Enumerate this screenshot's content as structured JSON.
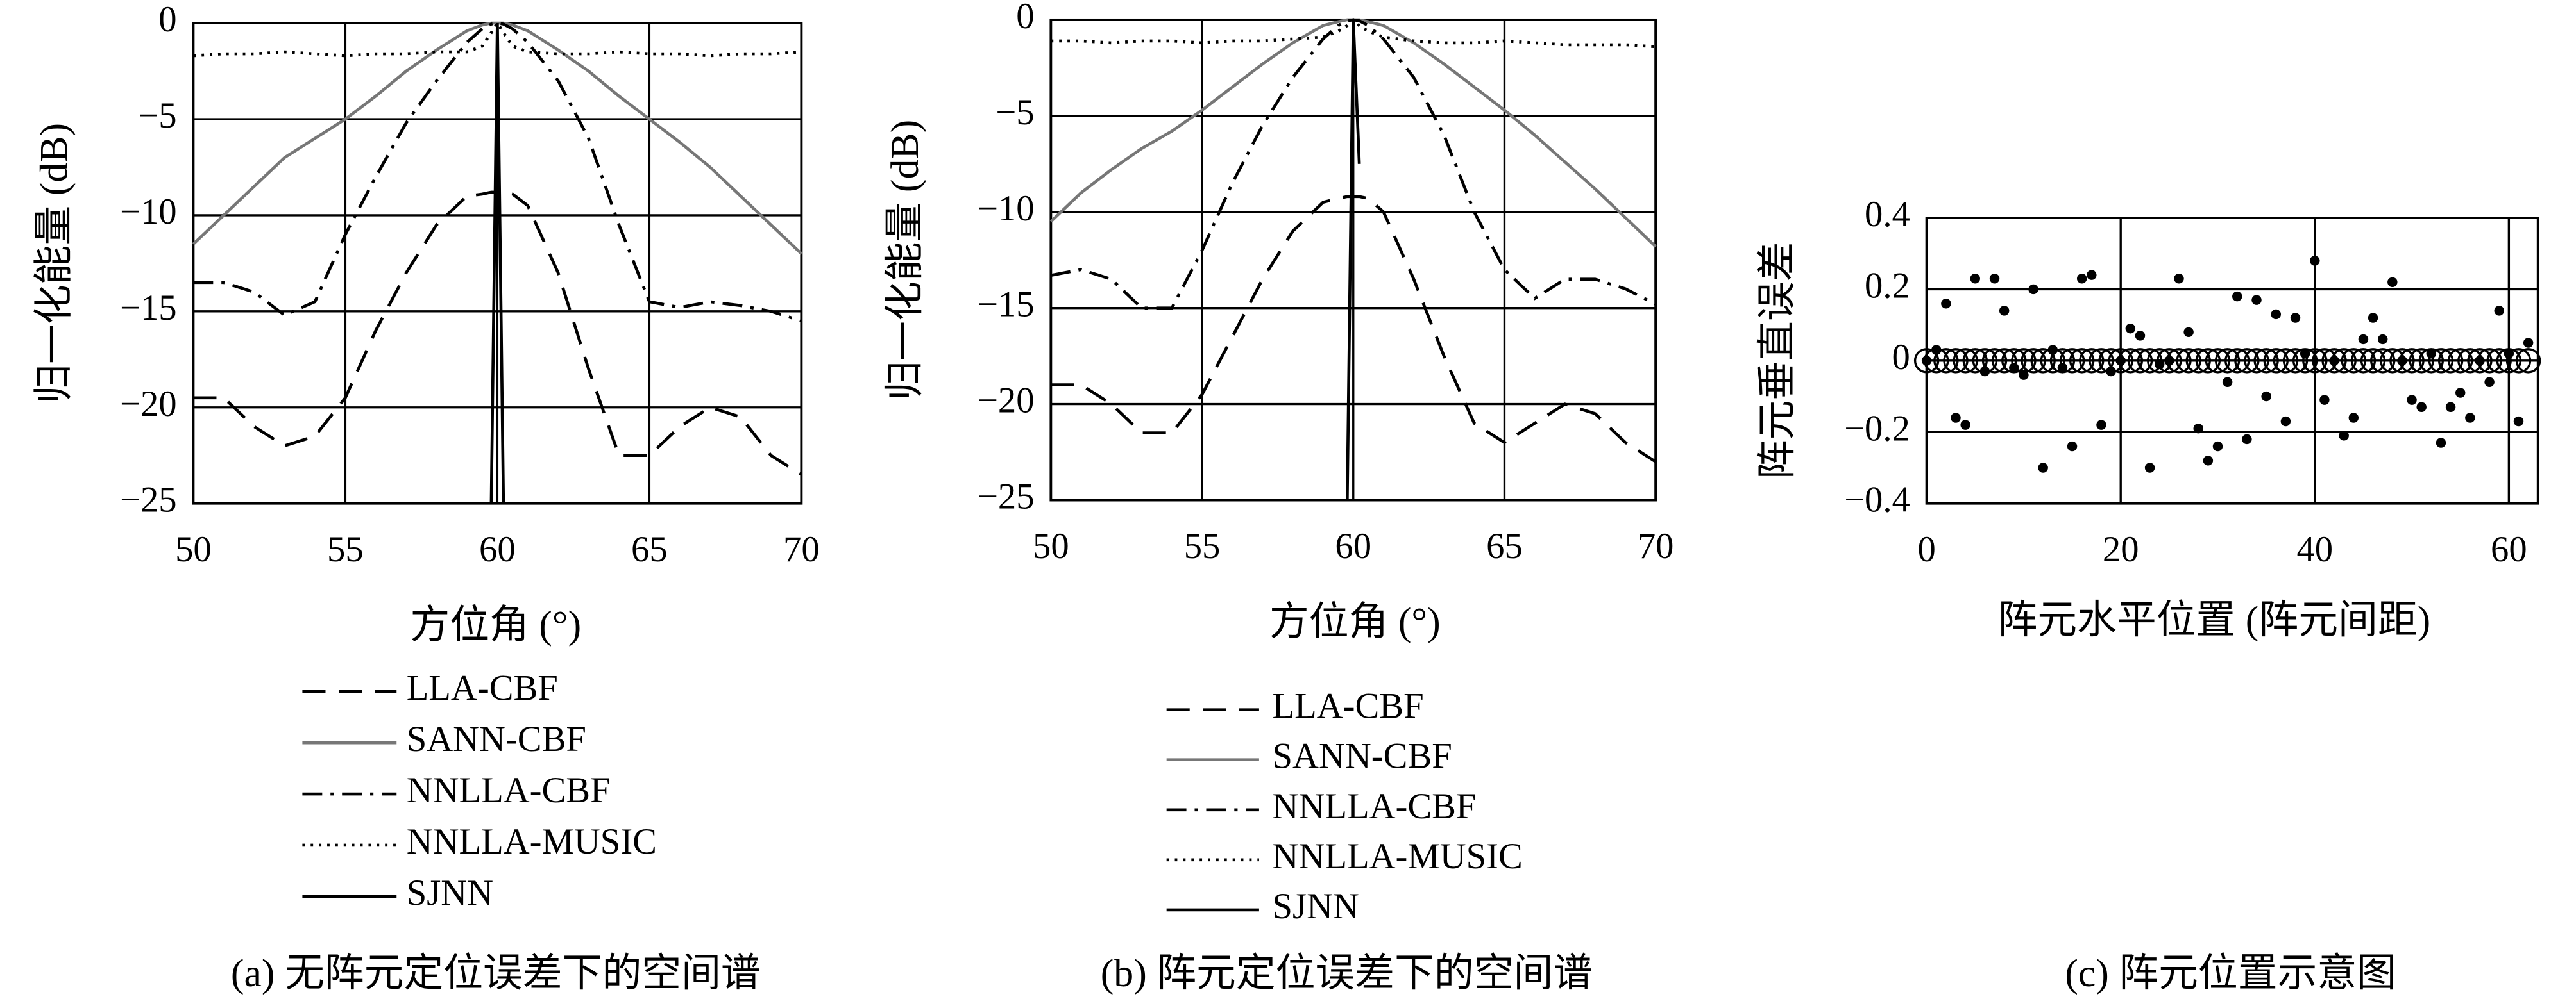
{
  "chart_data": [
    {
      "type": "line",
      "ylabel": "归一化能量 (dB)",
      "xlabel": "方位角 (°)",
      "caption": "(a) 无阵元定位误差下的空间谱",
      "x": [
        50,
        51,
        52,
        53,
        54,
        55,
        56,
        57,
        58,
        59,
        59.5,
        59.8,
        60,
        60.2,
        60.5,
        61,
        62,
        63,
        64,
        65,
        66,
        67,
        68,
        69,
        70
      ],
      "xlim": [
        50,
        70
      ],
      "xticks": [
        50,
        55,
        60,
        65,
        70
      ],
      "ylim": [
        -25,
        0
      ],
      "yticks": [
        {
          "value": -25,
          "label": "−25"
        },
        {
          "value": -20,
          "label": "−20"
        },
        {
          "value": -15,
          "label": "−15"
        },
        {
          "value": -10,
          "label": "−10"
        },
        {
          "value": -5,
          "label": "−5"
        },
        0
      ],
      "grid": true,
      "series": [
        {
          "name": "LLA-CBF",
          "color": "#000000",
          "dash": "dashed",
          "values": [
            -19.5,
            -19.5,
            -21,
            -22,
            -21.5,
            -19.5,
            -16,
            -13,
            -10.5,
            -9,
            -8.9,
            -8.8,
            -8.8,
            -8.8,
            -8.9,
            -9.5,
            -13,
            -18,
            -22.5,
            -22.5,
            -21,
            -20,
            -20.5,
            -22.5,
            -23.5
          ]
        },
        {
          "name": "SANN-CBF",
          "color": "#777777",
          "dash": "solid",
          "values": [
            -11.5,
            -10,
            -8.5,
            -7,
            -6,
            -5,
            -3.8,
            -2.5,
            -1.4,
            -0.4,
            -0.1,
            0,
            0,
            0,
            -0.1,
            -0.4,
            -1.4,
            -2.5,
            -3.8,
            -5,
            -6.2,
            -7.5,
            -9,
            -10.5,
            -12
          ]
        },
        {
          "name": "NNLLA-CBF",
          "color": "#000000",
          "dash": "dashdot",
          "values": [
            -13.5,
            -13.5,
            -14,
            -15.2,
            -14.5,
            -11,
            -8,
            -5.2,
            -3,
            -1,
            -0.3,
            -0.05,
            0,
            -0.05,
            -0.3,
            -1,
            -3,
            -6,
            -10.5,
            -14.5,
            -14.8,
            -14.5,
            -14.7,
            -15,
            -15.5
          ]
        },
        {
          "name": "NNLLA-MUSIC",
          "color": "#000000",
          "dash": "dotted",
          "values": [
            -1.7,
            -1.6,
            -1.6,
            -1.5,
            -1.6,
            -1.7,
            -1.6,
            -1.6,
            -1.5,
            -1.5,
            -1.2,
            -0.5,
            0,
            -0.5,
            -1.2,
            -1.5,
            -1.6,
            -1.6,
            -1.5,
            -1.6,
            -1.6,
            -1.7,
            -1.6,
            -1.6,
            -1.5
          ]
        },
        {
          "name": "SJNN",
          "color": "#000000",
          "dash": "solid",
          "values": [
            null,
            null,
            null,
            null,
            null,
            null,
            null,
            null,
            null,
            null,
            null,
            -25,
            0,
            -25,
            null,
            null,
            null,
            null,
            null,
            null,
            null,
            null,
            null,
            null,
            null
          ]
        }
      ]
    },
    {
      "type": "line",
      "ylabel": "归一化能量 (dB)",
      "xlabel": "方位角 (°)",
      "caption": "(b) 阵元定位误差下的空间谱",
      "x": [
        50,
        51,
        52,
        53,
        54,
        55,
        56,
        57,
        58,
        59,
        59.5,
        59.8,
        60,
        60.2,
        60.5,
        61,
        62,
        63,
        64,
        65,
        66,
        67,
        68,
        69,
        70
      ],
      "xlim": [
        50,
        70
      ],
      "xticks": [
        50,
        55,
        60,
        65,
        70
      ],
      "ylim": [
        -25,
        0
      ],
      "yticks": [
        {
          "value": -25,
          "label": "−25"
        },
        {
          "value": -20,
          "label": "−20"
        },
        {
          "value": -15,
          "label": "−15"
        },
        {
          "value": -10,
          "label": "−10"
        },
        {
          "value": -5,
          "label": "−5"
        },
        0
      ],
      "grid": true,
      "series": [
        {
          "name": "LLA-CBF",
          "color": "#000000",
          "dash": "dashed",
          "values": [
            -19,
            -19,
            -20,
            -21.5,
            -21.5,
            -19.5,
            -16.5,
            -13.5,
            -11,
            -9.5,
            -9.3,
            -9.2,
            -9.2,
            -9.2,
            -9.3,
            -10,
            -13.5,
            -17.5,
            -21,
            -22,
            -21,
            -20,
            -20.5,
            -22,
            -23
          ]
        },
        {
          "name": "SANN-CBF",
          "color": "#777777",
          "dash": "solid",
          "values": [
            -10.5,
            -9,
            -7.8,
            -6.7,
            -5.8,
            -4.7,
            -3.5,
            -2.3,
            -1.2,
            -0.3,
            -0.1,
            0,
            0,
            0,
            -0.1,
            -0.3,
            -1.2,
            -2.3,
            -3.5,
            -4.7,
            -6,
            -7.4,
            -8.8,
            -10.3,
            -11.8
          ]
        },
        {
          "name": "NNLLA-CBF",
          "color": "#000000",
          "dash": "dashdot",
          "values": [
            -13.3,
            -13,
            -13.5,
            -15,
            -15,
            -12,
            -8.5,
            -5.5,
            -3,
            -1,
            -0.3,
            -0.05,
            0,
            -0.05,
            -0.3,
            -1,
            -3,
            -6,
            -10,
            -13,
            -14.5,
            -13.5,
            -13.5,
            -14,
            -14.8
          ]
        },
        {
          "name": "NNLLA-MUSIC",
          "color": "#000000",
          "dash": "dotted",
          "values": [
            -1.1,
            -1.1,
            -1.2,
            -1.1,
            -1.1,
            -1.2,
            -1.1,
            -1.1,
            -1.0,
            -0.9,
            -0.6,
            -0.3,
            0,
            -0.3,
            -0.6,
            -0.9,
            -1.1,
            -1.2,
            -1.2,
            -1.1,
            -1.2,
            -1.3,
            -1.3,
            -1.3,
            -1.4
          ]
        },
        {
          "name": "SJNN",
          "color": "#000000",
          "dash": "solid",
          "values": [
            null,
            null,
            null,
            null,
            null,
            null,
            null,
            null,
            null,
            null,
            null,
            -25,
            0,
            -7.5,
            null,
            null,
            null,
            null,
            null,
            null,
            null,
            null,
            null,
            null,
            null
          ]
        }
      ]
    },
    {
      "type": "scatter",
      "ylabel": "阵元垂直误差",
      "xlabel": "阵元水平位置 (阵元间距)",
      "caption": "(c) 阵元位置示意图",
      "x": [
        0,
        1,
        2,
        3,
        4,
        5,
        6,
        7,
        8,
        9,
        10,
        11,
        12,
        13,
        14,
        15,
        16,
        17,
        18,
        19,
        20,
        21,
        22,
        23,
        24,
        25,
        26,
        27,
        28,
        29,
        30,
        31,
        32,
        33,
        34,
        35,
        36,
        37,
        38,
        39,
        40,
        41,
        42,
        43,
        44,
        45,
        46,
        47,
        48,
        49,
        50,
        51,
        52,
        53,
        54,
        55,
        56,
        57,
        58,
        59,
        60,
        61,
        62
      ],
      "xlim": [
        0,
        63
      ],
      "xticks": [
        0,
        20,
        40,
        60
      ],
      "ylim": [
        -0.4,
        0.4
      ],
      "yticks": [
        {
          "value": -0.4,
          "label": "−0.4"
        },
        {
          "value": -0.2,
          "label": "−0.2"
        },
        0,
        0.2,
        0.4
      ],
      "grid": true,
      "series": [
        {
          "color": "#000000",
          "marker": "circle",
          "values": [
            0,
            0,
            0,
            0,
            0,
            0,
            0,
            0,
            0,
            0,
            0,
            0,
            0,
            0,
            0,
            0,
            0,
            0,
            0,
            0,
            0,
            0,
            0,
            0,
            0,
            0,
            0,
            0,
            0,
            0,
            0,
            0,
            0,
            0,
            0,
            0,
            0,
            0,
            0,
            0,
            0,
            0,
            0,
            0,
            0,
            0,
            0,
            0,
            0,
            0,
            0,
            0,
            0,
            0,
            0,
            0,
            0,
            0,
            0,
            0,
            0,
            0,
            0
          ]
        },
        {
          "color": "#000000",
          "marker": "dot",
          "values": [
            0,
            0.03,
            0.16,
            -0.16,
            -0.18,
            0.23,
            -0.03,
            0.23,
            0.14,
            -0.02,
            -0.04,
            0.2,
            -0.3,
            0.03,
            -0.02,
            -0.24,
            0.23,
            0.24,
            -0.18,
            -0.03,
            0,
            0.09,
            0.07,
            -0.3,
            -0.01,
            0,
            0.23,
            0.08,
            -0.19,
            -0.28,
            -0.24,
            -0.06,
            0.18,
            -0.22,
            0.17,
            -0.1,
            0.13,
            -0.17,
            0.12,
            0.02,
            0.28,
            -0.11,
            0,
            -0.21,
            -0.16,
            0.06,
            0.12,
            0.06,
            0.22,
            0,
            -0.11,
            -0.13,
            0.02,
            -0.23,
            -0.13,
            -0.09,
            -0.16,
            0,
            -0.06,
            0.14,
            0.02,
            -0.17,
            0.05
          ]
        }
      ]
    }
  ]
}
